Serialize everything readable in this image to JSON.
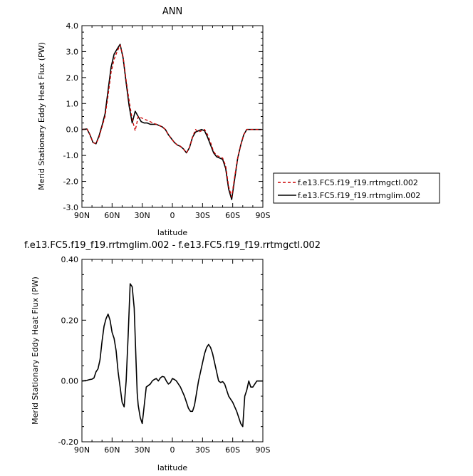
{
  "chart_data": [
    {
      "type": "line",
      "title": "ANN",
      "xlabel": "latitude",
      "ylabel": "Merid Stationary Eddy Heat Flux (PW)",
      "xlim": [
        90,
        -90
      ],
      "ylim": [
        -3.0,
        4.0
      ],
      "x_ticks": [
        {
          "value": 90,
          "label": "90N"
        },
        {
          "value": 60,
          "label": "60N"
        },
        {
          "value": 30,
          "label": "30N"
        },
        {
          "value": 0,
          "label": "0"
        },
        {
          "value": -30,
          "label": "30S"
        },
        {
          "value": -60,
          "label": "60S"
        },
        {
          "value": -90,
          "label": "90S"
        }
      ],
      "y_ticks": [
        {
          "value": 4.0,
          "label": "4.0"
        },
        {
          "value": 3.0,
          "label": "3.0"
        },
        {
          "value": 2.0,
          "label": "2.0"
        },
        {
          "value": 1.0,
          "label": "1.0"
        },
        {
          "value": 0.0,
          "label": "0.0"
        },
        {
          "value": -1.0,
          "label": "-1.0"
        },
        {
          "value": -2.0,
          "label": "-2.0"
        },
        {
          "value": -3.0,
          "label": "-3.0"
        }
      ],
      "legend": "outside-right",
      "series": [
        {
          "name": "f.e13.FC5.f19_f19.rrtmgctl.002",
          "color": "#cc0000",
          "dash": "dashed",
          "x": [
            90,
            85,
            82,
            79,
            76,
            73,
            70,
            67,
            64,
            61,
            58,
            55,
            52,
            49,
            46,
            43,
            40,
            37,
            34,
            31,
            28,
            25,
            22,
            19,
            16,
            13,
            10,
            7,
            4,
            1,
            -2,
            -5,
            -8,
            -11,
            -14,
            -17,
            -20,
            -23,
            -26,
            -29,
            -32,
            -35,
            -38,
            -41,
            -44,
            -47,
            -50,
            -53,
            -56,
            -59,
            -62,
            -65,
            -68,
            -71,
            -74,
            -77,
            -80,
            -83,
            -86,
            -89
          ],
          "y": [
            0.0,
            0.02,
            -0.2,
            -0.5,
            -0.55,
            -0.3,
            0.1,
            0.5,
            1.3,
            2.2,
            2.7,
            3.0,
            3.25,
            2.8,
            1.9,
            1.1,
            0.4,
            -0.05,
            0.5,
            0.45,
            0.4,
            0.35,
            0.3,
            0.25,
            0.2,
            0.15,
            0.1,
            0.0,
            -0.2,
            -0.35,
            -0.5,
            -0.6,
            -0.65,
            -0.75,
            -0.9,
            -0.7,
            -0.3,
            0.0,
            -0.1,
            -0.05,
            0.0,
            -0.2,
            -0.5,
            -0.85,
            -1.0,
            -1.05,
            -1.1,
            -1.4,
            -2.2,
            -2.6,
            -1.8,
            -1.1,
            -0.6,
            -0.2,
            0.0,
            0.0,
            0.0,
            0.0,
            0.0,
            0.0
          ]
        },
        {
          "name": "f.e13.FC5.f19_f19.rrtmglim.002",
          "color": "#000000",
          "dash": "solid",
          "x": [
            90,
            85,
            82,
            79,
            76,
            73,
            70,
            67,
            64,
            61,
            58,
            55,
            52,
            49,
            46,
            43,
            40,
            37,
            34,
            31,
            28,
            25,
            22,
            19,
            16,
            13,
            10,
            7,
            4,
            1,
            -2,
            -5,
            -8,
            -11,
            -14,
            -17,
            -20,
            -23,
            -26,
            -29,
            -32,
            -35,
            -38,
            -41,
            -44,
            -47,
            -50,
            -53,
            -56,
            -59,
            -62,
            -65,
            -68,
            -71,
            -74,
            -77,
            -80,
            -83,
            -86,
            -89
          ],
          "y": [
            0.0,
            0.02,
            -0.2,
            -0.5,
            -0.55,
            -0.25,
            0.15,
            0.6,
            1.5,
            2.4,
            2.9,
            3.1,
            3.28,
            2.75,
            1.8,
            0.9,
            0.25,
            0.7,
            0.5,
            0.3,
            0.25,
            0.25,
            0.2,
            0.2,
            0.2,
            0.15,
            0.1,
            0.0,
            -0.2,
            -0.35,
            -0.5,
            -0.6,
            -0.65,
            -0.75,
            -0.9,
            -0.7,
            -0.3,
            -0.1,
            -0.05,
            0.0,
            -0.05,
            -0.3,
            -0.6,
            -0.9,
            -1.05,
            -1.1,
            -1.15,
            -1.5,
            -2.3,
            -2.7,
            -1.9,
            -1.1,
            -0.6,
            -0.2,
            0.0,
            0.0,
            0.0,
            0.0,
            0.0,
            0.0
          ]
        }
      ]
    },
    {
      "type": "line",
      "title": "f.e13.FC5.f19_f19.rrtmglim.002 - f.e13.FC5.f19_f19.rrtmgctl.002",
      "xlabel": "latitude",
      "ylabel": "Merid Stationary Eddy Heat Flux (PW)",
      "xlim": [
        90,
        -90
      ],
      "ylim": [
        -0.2,
        0.4
      ],
      "x_ticks": [
        {
          "value": 90,
          "label": "90N"
        },
        {
          "value": 60,
          "label": "60N"
        },
        {
          "value": 30,
          "label": "30N"
        },
        {
          "value": 0,
          "label": "0"
        },
        {
          "value": -30,
          "label": "30S"
        },
        {
          "value": -60,
          "label": "60S"
        },
        {
          "value": -90,
          "label": "90S"
        }
      ],
      "y_ticks": [
        {
          "value": 0.4,
          "label": "0.40"
        },
        {
          "value": 0.2,
          "label": "0.20"
        },
        {
          "value": 0.0,
          "label": "0.00"
        },
        {
          "value": -0.2,
          "label": "-0.20"
        }
      ],
      "series": [
        {
          "color": "#000000",
          "dash": "solid",
          "x": [
            90,
            85,
            82,
            80,
            78,
            76,
            74,
            72,
            70,
            68,
            66,
            64,
            62,
            60,
            58,
            56,
            54,
            52,
            50,
            48,
            46,
            44,
            42,
            40,
            38,
            36,
            35,
            34,
            32,
            30,
            28,
            26,
            24,
            22,
            20,
            18,
            16,
            14,
            12,
            10,
            8,
            6,
            4,
            2,
            0,
            -2,
            -4,
            -6,
            -8,
            -10,
            -12,
            -14,
            -16,
            -18,
            -20,
            -22,
            -24,
            -26,
            -28,
            -30,
            -32,
            -34,
            -36,
            -38,
            -40,
            -42,
            -44,
            -46,
            -48,
            -50,
            -52,
            -54,
            -56,
            -58,
            -60,
            -62,
            -64,
            -66,
            -68,
            -70,
            -72,
            -74,
            -76,
            -78,
            -80,
            -82,
            -84,
            -86,
            -88,
            -90
          ],
          "y": [
            0.0,
            0.002,
            0.005,
            0.006,
            0.01,
            0.03,
            0.04,
            0.07,
            0.13,
            0.18,
            0.205,
            0.22,
            0.2,
            0.16,
            0.14,
            0.1,
            0.03,
            -0.02,
            -0.07,
            -0.085,
            0.0,
            0.15,
            0.32,
            0.31,
            0.24,
            0.05,
            -0.04,
            -0.08,
            -0.12,
            -0.14,
            -0.08,
            -0.02,
            -0.015,
            -0.01,
            0.0,
            0.005,
            0.008,
            0.0,
            0.01,
            0.015,
            0.013,
            0.0,
            -0.01,
            -0.005,
            0.008,
            0.005,
            0.0,
            -0.01,
            -0.02,
            -0.035,
            -0.05,
            -0.07,
            -0.09,
            -0.1,
            -0.1,
            -0.08,
            -0.04,
            0.0,
            0.03,
            0.06,
            0.09,
            0.11,
            0.12,
            0.11,
            0.09,
            0.06,
            0.03,
            0.0,
            -0.005,
            -0.002,
            -0.01,
            -0.03,
            -0.05,
            -0.06,
            -0.07,
            -0.085,
            -0.1,
            -0.12,
            -0.14,
            -0.15,
            -0.05,
            -0.03,
            0.0,
            -0.02,
            -0.02,
            -0.01,
            0.0,
            0.0,
            0.0,
            0.0
          ]
        }
      ]
    }
  ]
}
